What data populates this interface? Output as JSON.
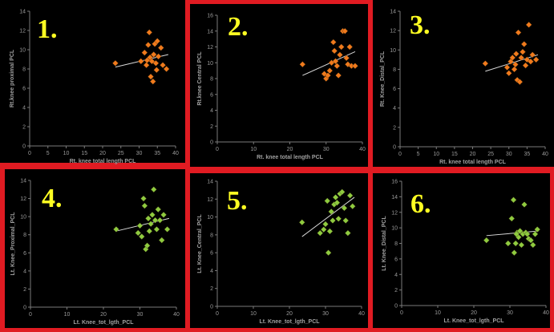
{
  "colors": {
    "orange": "#f07a1c",
    "green": "#8ecb3f",
    "axis": "#7a7a7a",
    "trend": "#d8d8d8",
    "badge": "#ffff22",
    "border": "#e01b22"
  },
  "chart_data": [
    {
      "badge": "1.",
      "type": "scatter",
      "xlabel": "Rt. knee total length PCL",
      "ylabel": "Rt.knee proximal PCL",
      "xlim": [
        0,
        40
      ],
      "ylim": [
        0,
        14
      ],
      "xticks": [
        0,
        5,
        10,
        15,
        20,
        25,
        30,
        35,
        40
      ],
      "yticks": [
        0,
        2,
        4,
        6,
        8,
        10,
        12,
        14
      ],
      "color": "orange",
      "trend": [
        [
          23.5,
          8.2
        ],
        [
          38,
          9.5
        ]
      ],
      "points": [
        [
          23.5,
          8.6
        ],
        [
          30.5,
          8.8
        ],
        [
          31.5,
          9.7
        ],
        [
          32,
          8.4
        ],
        [
          32.5,
          10.5
        ],
        [
          32.8,
          11.8
        ],
        [
          33,
          9.2
        ],
        [
          33.2,
          7.2
        ],
        [
          33.5,
          8.8
        ],
        [
          33.8,
          6.7
        ],
        [
          34,
          9.5
        ],
        [
          34.3,
          10.6
        ],
        [
          34.6,
          8.6
        ],
        [
          35,
          10.9
        ],
        [
          35.3,
          9.3
        ],
        [
          36,
          10.2
        ],
        [
          36.5,
          8.4
        ],
        [
          37.5,
          8.0
        ],
        [
          32.2,
          8.9
        ],
        [
          34.8,
          7.9
        ]
      ]
    },
    {
      "badge": "2.",
      "type": "scatter",
      "xlabel": "Rt. knee total length PCL",
      "ylabel": "Rt.knee Central PCL",
      "xlim": [
        0,
        40
      ],
      "ylim": [
        0,
        16
      ],
      "xticks": [
        0,
        10,
        20,
        30,
        40
      ],
      "yticks": [
        0,
        2,
        4,
        6,
        8,
        10,
        12,
        14,
        16
      ],
      "color": "orange",
      "trend": [
        [
          23.5,
          8.4
        ],
        [
          38,
          11.4
        ]
      ],
      "points": [
        [
          23.5,
          9.8
        ],
        [
          29.5,
          8.6
        ],
        [
          30,
          8.0
        ],
        [
          30.5,
          8.4
        ],
        [
          31,
          9.0
        ],
        [
          31.5,
          10.0
        ],
        [
          32,
          12.6
        ],
        [
          32.3,
          11.5
        ],
        [
          32.6,
          10.2
        ],
        [
          33,
          9.6
        ],
        [
          33.4,
          8.4
        ],
        [
          33.8,
          11.0
        ],
        [
          34.2,
          12.0
        ],
        [
          34.6,
          14.0
        ],
        [
          35.2,
          14.0
        ],
        [
          35.6,
          10.6
        ],
        [
          36,
          9.8
        ],
        [
          36.5,
          12.0
        ],
        [
          37,
          9.6
        ],
        [
          38,
          9.6
        ]
      ]
    },
    {
      "badge": "3.",
      "type": "scatter",
      "xlabel": "Rt. knee total length PCL",
      "ylabel": "Rt. Knee_Distal_PCL",
      "xlim": [
        0,
        40
      ],
      "ylim": [
        0,
        14
      ],
      "xticks": [
        0,
        5,
        10,
        15,
        20,
        25,
        30,
        35,
        40
      ],
      "yticks": [
        0,
        2,
        4,
        6,
        8,
        10,
        12,
        14
      ],
      "color": "orange",
      "trend": [
        [
          23.5,
          7.8
        ],
        [
          38,
          9.5
        ]
      ],
      "points": [
        [
          23.5,
          8.6
        ],
        [
          29.5,
          8.2
        ],
        [
          30,
          7.6
        ],
        [
          30.5,
          8.8
        ],
        [
          31,
          9.2
        ],
        [
          31.5,
          8.0
        ],
        [
          32,
          9.6
        ],
        [
          32.3,
          6.9
        ],
        [
          32.6,
          11.8
        ],
        [
          33,
          6.7
        ],
        [
          33.4,
          9.2
        ],
        [
          33.8,
          9.8
        ],
        [
          34.2,
          10.6
        ],
        [
          34.6,
          8.4
        ],
        [
          35,
          9.0
        ],
        [
          35.5,
          12.6
        ],
        [
          36,
          8.8
        ],
        [
          36.5,
          9.5
        ],
        [
          37.5,
          9.0
        ],
        [
          31.8,
          8.5
        ]
      ]
    },
    {
      "badge": "4.",
      "type": "scatter",
      "xlabel": "Lt. Knee_tot_lgth_PCL",
      "ylabel": "Lt. Knee_Proximal_PCL",
      "xlim": [
        0,
        40
      ],
      "ylim": [
        0,
        14
      ],
      "xticks": [
        0,
        10,
        20,
        30,
        40
      ],
      "yticks": [
        0,
        2,
        4,
        6,
        8,
        10,
        12,
        14
      ],
      "color": "green",
      "trend": [
        [
          23.5,
          8.4
        ],
        [
          38,
          9.8
        ]
      ],
      "points": [
        [
          23.5,
          8.6
        ],
        [
          29.5,
          8.2
        ],
        [
          30,
          9.0
        ],
        [
          30.5,
          7.8
        ],
        [
          31,
          12.0
        ],
        [
          31.3,
          11.2
        ],
        [
          31.6,
          6.4
        ],
        [
          32,
          6.8
        ],
        [
          32.3,
          9.8
        ],
        [
          32.6,
          8.4
        ],
        [
          33,
          9.2
        ],
        [
          33.4,
          10.2
        ],
        [
          33.8,
          13.0
        ],
        [
          34.2,
          9.6
        ],
        [
          34.6,
          8.6
        ],
        [
          35,
          10.8
        ],
        [
          35.5,
          9.6
        ],
        [
          36,
          7.4
        ],
        [
          36.5,
          10.2
        ],
        [
          37.5,
          8.6
        ]
      ]
    },
    {
      "badge": "5.",
      "type": "scatter",
      "xlabel": "Lt. Knee_tot_lgth_PCL",
      "ylabel": "Lt. Knee_Central_PCL",
      "xlim": [
        0,
        40
      ],
      "ylim": [
        0,
        14
      ],
      "xticks": [
        0,
        10,
        20,
        30,
        40
      ],
      "yticks": [
        0,
        2,
        4,
        6,
        8,
        10,
        12,
        14
      ],
      "color": "green",
      "trend": [
        [
          23.5,
          7.8
        ],
        [
          38,
          12.2
        ]
      ],
      "points": [
        [
          23.5,
          9.4
        ],
        [
          28.5,
          8.2
        ],
        [
          29.5,
          8.6
        ],
        [
          30,
          9.2
        ],
        [
          30.5,
          11.8
        ],
        [
          30.8,
          6.0
        ],
        [
          31.2,
          8.4
        ],
        [
          31.6,
          10.6
        ],
        [
          32,
          9.6
        ],
        [
          32.4,
          11.4
        ],
        [
          32.8,
          12.2
        ],
        [
          33.2,
          11.6
        ],
        [
          33.6,
          9.8
        ],
        [
          34,
          12.6
        ],
        [
          34.6,
          12.8
        ],
        [
          35.2,
          11.0
        ],
        [
          35.6,
          9.6
        ],
        [
          36.2,
          8.2
        ],
        [
          36.8,
          12.4
        ],
        [
          37.5,
          11.2
        ]
      ]
    },
    {
      "badge": "6.",
      "type": "scatter",
      "xlabel": "Lt. Knee_tot_lgth_PCL",
      "ylabel": "Lt. Knee_Distal_PCL",
      "xlim": [
        0,
        40
      ],
      "ylim": [
        0,
        16
      ],
      "xticks": [
        0,
        10,
        20,
        30,
        40
      ],
      "yticks": [
        0,
        2,
        4,
        6,
        8,
        10,
        12,
        14,
        16
      ],
      "color": "green",
      "trend": [
        [
          23.5,
          9.0
        ],
        [
          38,
          9.6
        ]
      ],
      "points": [
        [
          23.5,
          8.4
        ],
        [
          29.5,
          8.0
        ],
        [
          30.5,
          11.2
        ],
        [
          31,
          13.6
        ],
        [
          31.2,
          6.8
        ],
        [
          31.6,
          8.0
        ],
        [
          32,
          9.4
        ],
        [
          32.4,
          8.8
        ],
        [
          32.8,
          9.6
        ],
        [
          33.2,
          7.8
        ],
        [
          33.6,
          9.2
        ],
        [
          34,
          13.0
        ],
        [
          34.4,
          9.4
        ],
        [
          34.8,
          9.2
        ],
        [
          35.2,
          8.6
        ],
        [
          35.8,
          8.4
        ],
        [
          36.4,
          7.8
        ],
        [
          37,
          9.2
        ],
        [
          37.6,
          9.8
        ],
        [
          31.8,
          9.2
        ]
      ]
    }
  ]
}
